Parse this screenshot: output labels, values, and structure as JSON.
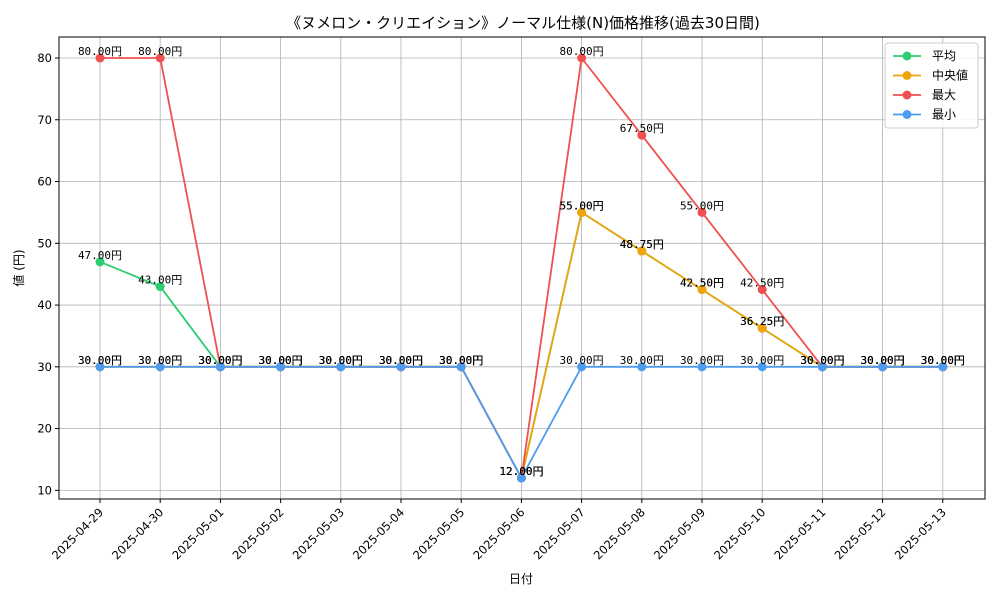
{
  "chart_data": {
    "type": "line",
    "title": "《ヌメロン・クリエイション》ノーマル仕様(N)価格推移(過去30日間)",
    "xlabel": "日付",
    "ylabel": "値 (円)",
    "ylim": [
      8.6,
      83.4
    ],
    "yticks": [
      10,
      20,
      30,
      40,
      50,
      60,
      70,
      80
    ],
    "grid": true,
    "legend_position": "top-right",
    "categories": [
      "2025-04-29",
      "2025-04-30",
      "2025-05-01",
      "2025-05-02",
      "2025-05-03",
      "2025-05-04",
      "2025-05-05",
      "2025-05-06",
      "2025-05-07",
      "2025-05-08",
      "2025-05-09",
      "2025-05-10",
      "2025-05-11",
      "2025-05-12",
      "2025-05-13"
    ],
    "series": [
      {
        "name": "平均",
        "color": "#2ecc71",
        "values": [
          47.0,
          43.0,
          30.0,
          30.0,
          30.0,
          30.0,
          30.0,
          12.0,
          55.0,
          48.75,
          42.5,
          36.25,
          30.0,
          30.0,
          30.0
        ]
      },
      {
        "name": "中央値",
        "color": "#f0a30a",
        "values": [
          30.0,
          30.0,
          30.0,
          30.0,
          30.0,
          30.0,
          30.0,
          12.0,
          55.0,
          48.75,
          42.5,
          36.25,
          30.0,
          30.0,
          30.0
        ]
      },
      {
        "name": "最大",
        "color": "#f05050",
        "values": [
          80.0,
          80.0,
          30.0,
          30.0,
          30.0,
          30.0,
          30.0,
          12.0,
          80.0,
          67.5,
          55.0,
          42.5,
          30.0,
          30.0,
          30.0
        ]
      },
      {
        "name": "最小",
        "color": "#4d9cf0",
        "values": [
          30.0,
          30.0,
          30.0,
          30.0,
          30.0,
          30.0,
          30.0,
          12.0,
          30.0,
          30.0,
          30.0,
          30.0,
          30.0,
          30.0,
          30.0
        ]
      }
    ],
    "label_suffix": "円"
  }
}
